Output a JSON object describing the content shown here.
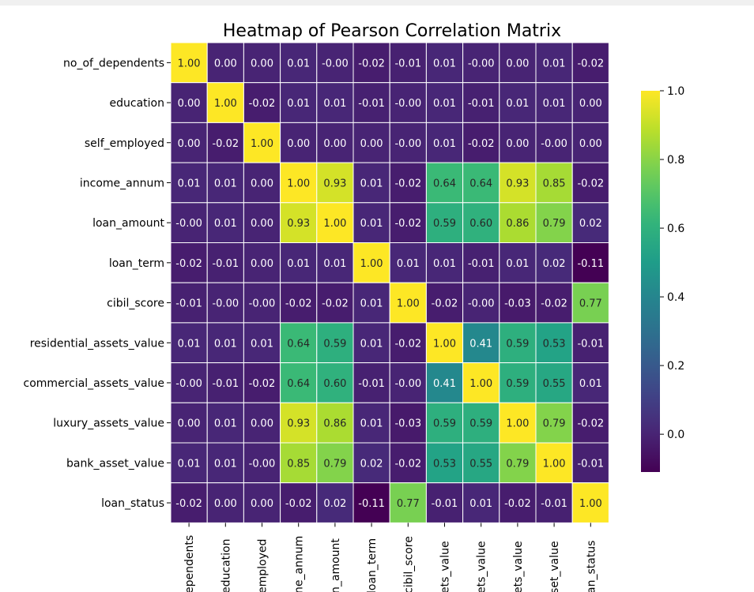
{
  "chart_data": {
    "type": "heatmap",
    "title": "Heatmap of Pearson Correlation Matrix",
    "row_labels": [
      "no_of_dependents",
      "education",
      "self_employed",
      "income_annum",
      "loan_amount",
      "loan_term",
      "cibil_score",
      "residential_assets_value",
      "commercial_assets_value",
      "luxury_assets_value",
      "bank_asset_value",
      "loan_status"
    ],
    "col_labels_visible": [
      "ependents",
      "education",
      "employed",
      "ne_annum",
      "n_amount",
      "loan_term",
      "cibil_score",
      "ets_value",
      "ets_value",
      "ets_value",
      "set_value",
      "an_status"
    ],
    "cell_labels": [
      [
        "1.00",
        "0.00",
        "0.00",
        "0.01",
        "-0.00",
        "-0.02",
        "-0.01",
        "0.01",
        "-0.00",
        "0.00",
        "0.01",
        "-0.02"
      ],
      [
        "0.00",
        "1.00",
        "-0.02",
        "0.01",
        "0.01",
        "-0.01",
        "-0.00",
        "0.01",
        "-0.01",
        "0.01",
        "0.01",
        "0.00"
      ],
      [
        "0.00",
        "-0.02",
        "1.00",
        "0.00",
        "0.00",
        "0.00",
        "-0.00",
        "0.01",
        "-0.02",
        "0.00",
        "-0.00",
        "0.00"
      ],
      [
        "0.01",
        "0.01",
        "0.00",
        "1.00",
        "0.93",
        "0.01",
        "-0.02",
        "0.64",
        "0.64",
        "0.93",
        "0.85",
        "-0.02"
      ],
      [
        "-0.00",
        "0.01",
        "0.00",
        "0.93",
        "1.00",
        "0.01",
        "-0.02",
        "0.59",
        "0.60",
        "0.86",
        "0.79",
        "0.02"
      ],
      [
        "-0.02",
        "-0.01",
        "0.00",
        "0.01",
        "0.01",
        "1.00",
        "0.01",
        "0.01",
        "-0.01",
        "0.01",
        "0.02",
        "-0.11"
      ],
      [
        "-0.01",
        "-0.00",
        "-0.00",
        "-0.02",
        "-0.02",
        "0.01",
        "1.00",
        "-0.02",
        "-0.00",
        "-0.03",
        "-0.02",
        "0.77"
      ],
      [
        "0.01",
        "0.01",
        "0.01",
        "0.64",
        "0.59",
        "0.01",
        "-0.02",
        "1.00",
        "0.41",
        "0.59",
        "0.53",
        "-0.01"
      ],
      [
        "-0.00",
        "-0.01",
        "-0.02",
        "0.64",
        "0.60",
        "-0.01",
        "-0.00",
        "0.41",
        "1.00",
        "0.59",
        "0.55",
        "0.01"
      ],
      [
        "0.00",
        "0.01",
        "0.00",
        "0.93",
        "0.86",
        "0.01",
        "-0.03",
        "0.59",
        "0.59",
        "1.00",
        "0.79",
        "-0.02"
      ],
      [
        "0.01",
        "0.01",
        "-0.00",
        "0.85",
        "0.79",
        "0.02",
        "-0.02",
        "0.53",
        "0.55",
        "0.79",
        "1.00",
        "-0.01"
      ],
      [
        "-0.02",
        "0.00",
        "0.00",
        "-0.02",
        "0.02",
        "-0.11",
        "0.77",
        "-0.01",
        "0.01",
        "-0.02",
        "-0.01",
        "1.00"
      ]
    ],
    "colorbar": {
      "colormap": "viridis",
      "range": [
        -0.11,
        1.0
      ],
      "ticks": [
        0.0,
        0.2,
        0.4,
        0.6,
        0.8,
        1.0
      ],
      "tick_labels": [
        "0.0",
        "0.2",
        "0.4",
        "0.6",
        "0.8",
        "1.0"
      ]
    },
    "annotations": "values shown in each cell",
    "grid": "white cell borders"
  }
}
